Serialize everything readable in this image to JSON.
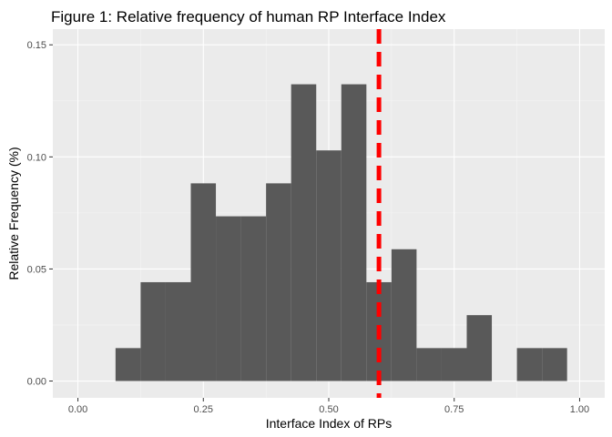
{
  "chart_data": {
    "type": "bar",
    "title": "Figure 1: Relative frequency of human RP Interface Index",
    "xlabel": "Interface Index of RPs",
    "ylabel": "Relative Frequency (%)",
    "xlim": [
      -0.05,
      1.05
    ],
    "ylim": [
      -0.0075,
      0.157
    ],
    "x_ticks": [
      0.0,
      0.25,
      0.5,
      0.75,
      1.0
    ],
    "x_tick_labels": [
      "0.00",
      "0.25",
      "0.50",
      "0.75",
      "1.00"
    ],
    "y_ticks": [
      0.0,
      0.05,
      0.1,
      0.15
    ],
    "y_tick_labels": [
      "0.00",
      "0.05",
      "0.10",
      "0.15"
    ],
    "bin_width": 0.05,
    "bins": [
      {
        "start": 0.075,
        "end": 0.125,
        "value": 0.0147
      },
      {
        "start": 0.125,
        "end": 0.175,
        "value": 0.0441
      },
      {
        "start": 0.175,
        "end": 0.225,
        "value": 0.0441
      },
      {
        "start": 0.225,
        "end": 0.275,
        "value": 0.0882
      },
      {
        "start": 0.275,
        "end": 0.325,
        "value": 0.0735
      },
      {
        "start": 0.325,
        "end": 0.375,
        "value": 0.0735
      },
      {
        "start": 0.375,
        "end": 0.425,
        "value": 0.0882
      },
      {
        "start": 0.425,
        "end": 0.475,
        "value": 0.1324
      },
      {
        "start": 0.475,
        "end": 0.525,
        "value": 0.1029
      },
      {
        "start": 0.525,
        "end": 0.575,
        "value": 0.1324
      },
      {
        "start": 0.575,
        "end": 0.625,
        "value": 0.0441
      },
      {
        "start": 0.625,
        "end": 0.675,
        "value": 0.0588
      },
      {
        "start": 0.675,
        "end": 0.725,
        "value": 0.0147
      },
      {
        "start": 0.725,
        "end": 0.775,
        "value": 0.0147
      },
      {
        "start": 0.775,
        "end": 0.825,
        "value": 0.0294
      },
      {
        "start": 0.825,
        "end": 0.875,
        "value": 0.0
      },
      {
        "start": 0.875,
        "end": 0.925,
        "value": 0.0147
      },
      {
        "start": 0.925,
        "end": 0.975,
        "value": 0.0147
      }
    ],
    "reference_line": {
      "x": 0.6,
      "style": "dashed",
      "color": "#ff0000"
    },
    "bar_color": "#595959",
    "panel_background": "#ebebeb",
    "grid": true,
    "legend": "none"
  }
}
